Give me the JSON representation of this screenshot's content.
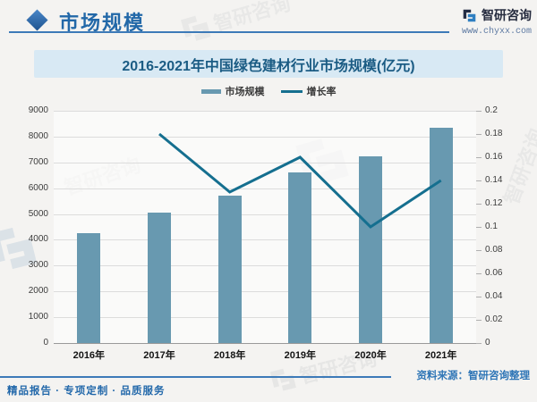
{
  "header": {
    "title": "市场规模",
    "brand": {
      "name": "智研咨询",
      "url": "www.chyxx.com"
    }
  },
  "footer": {
    "source": "资料来源：智研咨询整理",
    "tagline": "精品报告 · 专项定制 · 品质服务"
  },
  "watermark": {
    "text": "智研咨询"
  },
  "chart_data": {
    "type": "bar",
    "title": "2016-2021年中国绿色建材行业市场规模(亿元)",
    "categories": [
      "2016年",
      "2017年",
      "2018年",
      "2019年",
      "2020年",
      "2021年"
    ],
    "series": [
      {
        "name": "市场规模",
        "type": "bar",
        "axis": "left",
        "color": "#6899b0",
        "values": [
          4250,
          5050,
          5700,
          6600,
          7250,
          8350
        ]
      },
      {
        "name": "增长率",
        "type": "line",
        "axis": "right",
        "color": "#156f8f",
        "values": [
          null,
          0.18,
          0.13,
          0.16,
          0.1,
          0.14
        ]
      }
    ],
    "left_axis": {
      "min": 0,
      "max": 9000,
      "step": 1000,
      "ticks": [
        "0",
        "1000",
        "2000",
        "3000",
        "4000",
        "5000",
        "6000",
        "7000",
        "8000",
        "9000"
      ]
    },
    "right_axis": {
      "min": 0,
      "max": 0.2,
      "step": 0.02,
      "ticks": [
        "0",
        "0.02",
        "0.04",
        "0.06",
        "0.08",
        "0.1",
        "0.12",
        "0.14",
        "0.16",
        "0.18",
        "0.2"
      ]
    },
    "legend_position": "top",
    "grid": true
  }
}
